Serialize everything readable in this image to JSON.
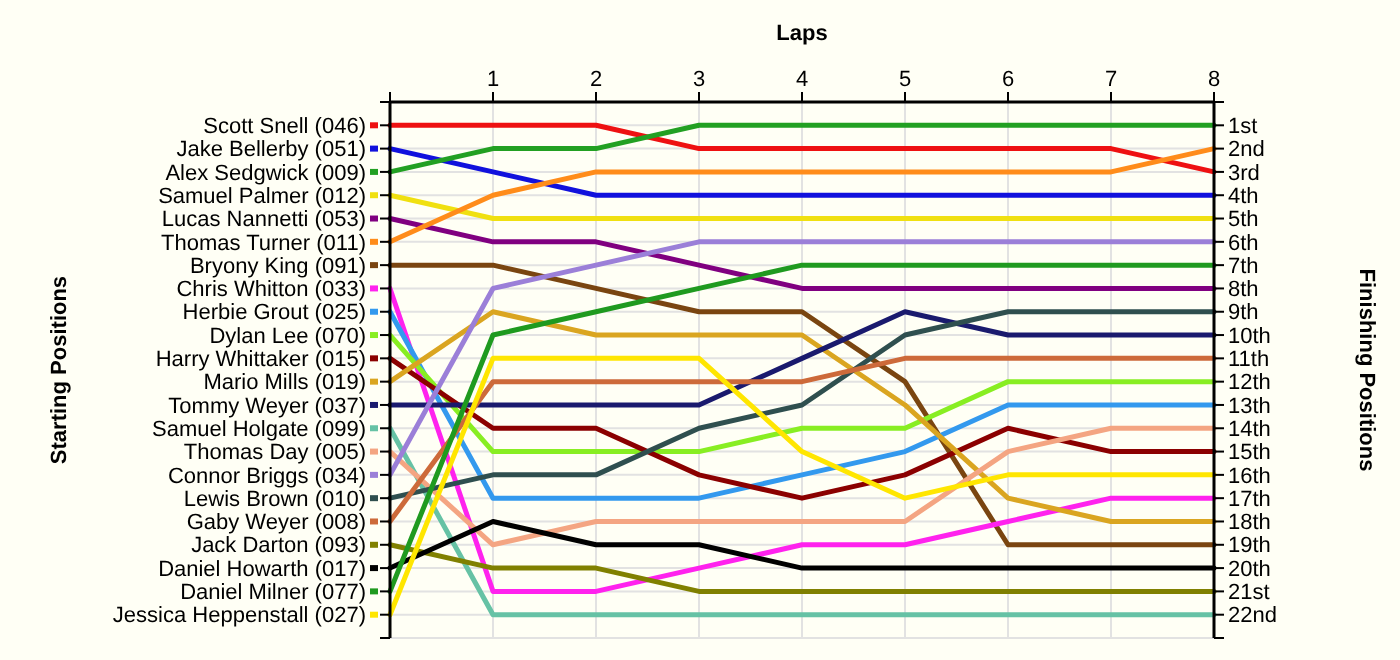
{
  "chart_data": {
    "type": "line",
    "xlabel": "Laps",
    "y2label": "Finishing Positions",
    "annotations": [
      "Starting Positions"
    ],
    "x": [
      0,
      1,
      2,
      3,
      4,
      5,
      6,
      7,
      8
    ],
    "xlim": [
      0,
      8
    ],
    "xticks": [
      {
        "value": 0,
        "label": null
      },
      1,
      2,
      3,
      4,
      5,
      6,
      7,
      8
    ],
    "y2lim": [
      23,
      0
    ],
    "y2ticks": [
      {
        "value": 0,
        "label": null
      },
      {
        "value": 1,
        "label": "1st"
      },
      {
        "value": 2,
        "label": "2nd"
      },
      {
        "value": 3,
        "label": "3rd"
      },
      {
        "value": 4,
        "label": "4th"
      },
      {
        "value": 5,
        "label": "5th"
      },
      {
        "value": 6,
        "label": "6th"
      },
      {
        "value": 7,
        "label": "7th"
      },
      {
        "value": 8,
        "label": "8th"
      },
      {
        "value": 9,
        "label": "9th"
      },
      {
        "value": 10,
        "label": "10th"
      },
      {
        "value": 11,
        "label": "11th"
      },
      {
        "value": 12,
        "label": "12th"
      },
      {
        "value": 13,
        "label": "13th"
      },
      {
        "value": 14,
        "label": "14th"
      },
      {
        "value": 15,
        "label": "15th"
      },
      {
        "value": 16,
        "label": "16th"
      },
      {
        "value": 17,
        "label": "17th"
      },
      {
        "value": 18,
        "label": "18th"
      },
      {
        "value": 19,
        "label": "19th"
      },
      {
        "value": 20,
        "label": "20th"
      },
      {
        "value": 21,
        "label": "21st"
      },
      {
        "value": 22,
        "label": "22nd"
      },
      {
        "value": 23,
        "label": null
      }
    ],
    "grid": true,
    "legend": "left",
    "marker": "none",
    "line_style": "solid",
    "series": [
      {
        "name": "Scott Snell (046)",
        "axis": "y2",
        "color": "#ee1111",
        "values": [
          1,
          1,
          1,
          2,
          2,
          2,
          2,
          2,
          3
        ]
      },
      {
        "name": "Jake Bellerby (051)",
        "axis": "y2",
        "color": "#1111dd",
        "values": [
          2,
          3,
          4,
          4,
          4,
          4,
          4,
          4,
          4
        ]
      },
      {
        "name": "Alex Sedgwick (009)",
        "axis": "y2",
        "color": "#22a022",
        "values": [
          3,
          2,
          2,
          1,
          1,
          1,
          1,
          1,
          1
        ]
      },
      {
        "name": "Samuel Palmer (012)",
        "axis": "y2",
        "color": "#f0e010",
        "values": [
          4,
          5,
          5,
          5,
          5,
          5,
          5,
          5,
          5
        ]
      },
      {
        "name": "Lucas Nannetti (053)",
        "axis": "y2",
        "color": "#800080",
        "values": [
          5,
          6,
          6,
          7,
          8,
          8,
          8,
          8,
          8
        ]
      },
      {
        "name": "Thomas Turner (011)",
        "axis": "y2",
        "color": "#ff8c1a",
        "values": [
          6,
          4,
          3,
          3,
          3,
          3,
          3,
          3,
          2
        ]
      },
      {
        "name": "Bryony King (091)",
        "axis": "y2",
        "color": "#7a4510",
        "values": [
          7,
          7,
          8,
          9,
          9,
          12,
          19,
          19,
          19
        ]
      },
      {
        "name": "Chris Whitton (033)",
        "axis": "y2",
        "color": "#ff22ee",
        "values": [
          8,
          21,
          21,
          20,
          19,
          19,
          18,
          17,
          17
        ]
      },
      {
        "name": "Herbie Grout (025)",
        "axis": "y2",
        "color": "#3399ee",
        "values": [
          9,
          17,
          17,
          17,
          16,
          15,
          13,
          13,
          13
        ]
      },
      {
        "name": "Dylan Lee (070)",
        "axis": "y2",
        "color": "#88ee22",
        "values": [
          10,
          15,
          15,
          15,
          14,
          14,
          12,
          12,
          12
        ]
      },
      {
        "name": "Harry Whittaker (015)",
        "axis": "y2",
        "color": "#8b0000",
        "values": [
          11,
          14,
          14,
          16,
          17,
          16,
          14,
          15,
          15
        ]
      },
      {
        "name": "Mario Mills (019)",
        "axis": "y2",
        "color": "#daa520",
        "values": [
          12,
          9,
          10,
          10,
          10,
          13,
          17,
          18,
          18
        ]
      },
      {
        "name": "Tommy Weyer (037)",
        "axis": "y2",
        "color": "#1a1a6e",
        "values": [
          13,
          13,
          13,
          13,
          11,
          9,
          10,
          10,
          10
        ]
      },
      {
        "name": "Samuel Holgate (099)",
        "axis": "y2",
        "color": "#66c2a5",
        "values": [
          14,
          22,
          22,
          22,
          22,
          22,
          22,
          22,
          22
        ]
      },
      {
        "name": "Thomas Day (005)",
        "axis": "y2",
        "color": "#f4a582",
        "values": [
          15,
          19,
          18,
          18,
          18,
          18,
          15,
          14,
          14
        ]
      },
      {
        "name": "Connor Briggs (034)",
        "axis": "y2",
        "color": "#9b7fd8",
        "values": [
          16,
          8,
          7,
          6,
          6,
          6,
          6,
          6,
          6
        ]
      },
      {
        "name": "Lewis Brown (010)",
        "axis": "y2",
        "color": "#2f4f4f",
        "values": [
          17,
          16,
          16,
          14,
          13,
          10,
          9,
          9,
          9
        ]
      },
      {
        "name": "Gaby Weyer (008)",
        "axis": "y2",
        "color": "#cd6a3a",
        "values": [
          18,
          12,
          12,
          12,
          12,
          11,
          11,
          11,
          11
        ]
      },
      {
        "name": "Jack Darton (093)",
        "axis": "y2",
        "color": "#808000",
        "values": [
          19,
          20,
          20,
          21,
          21,
          21,
          21,
          21,
          21
        ]
      },
      {
        "name": "Daniel Howarth (017)",
        "axis": "y2",
        "color": "#000000",
        "values": [
          20,
          18,
          19,
          19,
          20,
          20,
          20,
          20,
          20
        ]
      },
      {
        "name": "Daniel Milner (077)",
        "axis": "y2",
        "color": "#1f9a1f",
        "values": [
          21,
          10,
          9,
          8,
          7,
          7,
          7,
          7,
          7
        ]
      },
      {
        "name": "Jessica Heppenstall (027)",
        "axis": "y2",
        "color": "#ffe600",
        "values": [
          22,
          11,
          11,
          11,
          15,
          17,
          16,
          16,
          16
        ]
      }
    ]
  }
}
